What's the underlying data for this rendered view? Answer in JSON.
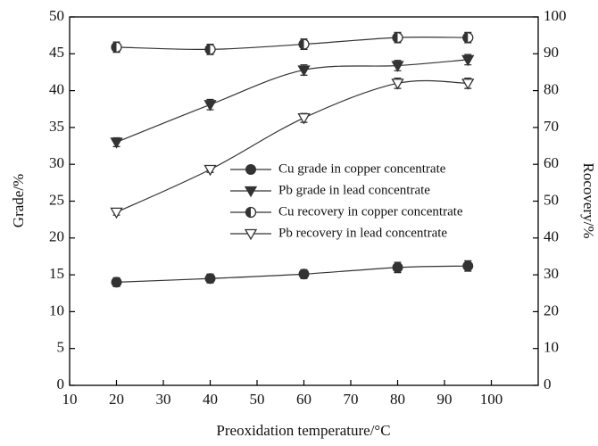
{
  "chart_data": {
    "type": "line",
    "xlabel": "Preoxidation temperature/°C",
    "ylabel": "Grade/%",
    "y2label": "Rocovery/%",
    "x": [
      20,
      40,
      60,
      80,
      95
    ],
    "xlim": [
      10,
      110
    ],
    "xticks": [
      10,
      20,
      30,
      40,
      50,
      60,
      70,
      80,
      90,
      100
    ],
    "ylim": [
      0,
      50
    ],
    "yticks": [
      0,
      5,
      10,
      15,
      20,
      25,
      30,
      35,
      40,
      45,
      50
    ],
    "y2lim": [
      0,
      100
    ],
    "y2ticks": [
      0,
      10,
      20,
      30,
      40,
      50,
      60,
      70,
      80,
      90,
      100
    ],
    "legend": "center",
    "series": [
      {
        "name": "Cu grade in copper concentrate",
        "color": "#333333",
        "marker": "circle",
        "values": [
          14.0,
          14.5,
          15.1,
          16.0,
          16.2
        ],
        "errors": [
          0.6,
          0.6,
          0.6,
          0.7,
          0.7
        ]
      },
      {
        "name": "Pb grade in lead concentrate",
        "color": "#333333",
        "marker": "triangle-down",
        "values": [
          33.0,
          38.1,
          42.8,
          43.4,
          44.2
        ],
        "errors": [
          0.6,
          0.7,
          0.7,
          0.7,
          0.7
        ]
      },
      {
        "name": "Cu recovery in copper concentrate",
        "color": "#333333",
        "marker": "half-circle",
        "axis": "y2",
        "values": [
          91.8,
          91.2,
          92.6,
          94.4,
          94.4
        ],
        "errors": [
          1.4,
          1.4,
          1.4,
          1.4,
          1.4
        ]
      },
      {
        "name": "Pb recovery in lead concentrate",
        "color": "#333333",
        "marker": "triangle-down-open",
        "axis": "y2",
        "values": [
          47.0,
          58.6,
          72.6,
          82.0,
          82.0
        ],
        "errors": [
          0.8,
          0.8,
          1.2,
          1.4,
          1.4
        ]
      }
    ]
  }
}
